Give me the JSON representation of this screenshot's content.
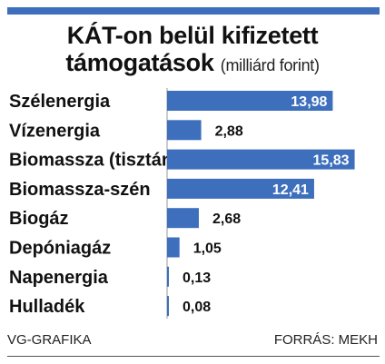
{
  "header": {
    "title_line1": "KÁT-on belül kifizetett",
    "title_line2": "támogatások",
    "unit": "(milliárd forint)"
  },
  "footer": {
    "left": "VG-GRAFIKA",
    "right": "FORRÁS: MEKH"
  },
  "colors": {
    "bar": "#3d6fbd",
    "label_inside": "#ffffff",
    "label_outside": "#111111"
  },
  "chart_data": {
    "type": "bar",
    "orientation": "horizontal",
    "title": "KÁT-on belül kifizetett támogatások",
    "ylabel": "",
    "xlabel": "",
    "unit": "(milliárd forint)",
    "xlim": [
      0,
      16
    ],
    "grid": false,
    "categories": [
      "Szélenergia",
      "Vízenergia",
      "Biomassza (tisztán)",
      "Biomassza-szén",
      "Biogáz",
      "Depóniagáz",
      "Napenergia",
      "Hulladék"
    ],
    "values": [
      13.98,
      2.88,
      15.83,
      12.41,
      2.68,
      1.05,
      0.13,
      0.08
    ],
    "labels": [
      "13,98",
      "2,88",
      "15,83",
      "12,41",
      "2,68",
      "1,05",
      "0,13",
      "0,08"
    ]
  }
}
